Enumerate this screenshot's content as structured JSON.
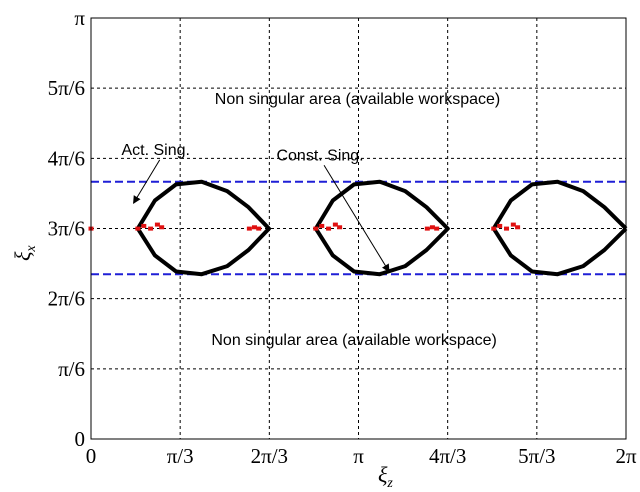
{
  "chart_data": {
    "type": "line",
    "xlabel": "ξ",
    "xlabel_sub": "z",
    "ylabel": "ξ",
    "ylabel_sub": "x",
    "xlim": [
      0,
      6.2832
    ],
    "ylim": [
      0,
      3.1416
    ],
    "x_ticks": [
      {
        "value": 0,
        "label": "0"
      },
      {
        "value": 1.0472,
        "label": "π/3"
      },
      {
        "value": 2.0944,
        "label": "2π/3"
      },
      {
        "value": 3.1416,
        "label": "π"
      },
      {
        "value": 4.1888,
        "label": "4π/3"
      },
      {
        "value": 5.236,
        "label": "5π/3"
      },
      {
        "value": 6.2832,
        "label": "2π"
      }
    ],
    "y_ticks": [
      {
        "value": 0,
        "label": "0"
      },
      {
        "value": 0.5236,
        "label": "π/6"
      },
      {
        "value": 1.0472,
        "label": "2π/6"
      },
      {
        "value": 1.5708,
        "label": "3π/6"
      },
      {
        "value": 2.0944,
        "label": "4π/6"
      },
      {
        "value": 2.618,
        "label": "5π/6"
      },
      {
        "value": 3.1416,
        "label": "π"
      }
    ],
    "grid": true,
    "series": [
      {
        "role": "constraint-singularity",
        "color": "#1f1fd6",
        "style": "dashed",
        "x": [
          0,
          6.2832
        ],
        "y": [
          1.92,
          1.92
        ]
      },
      {
        "role": "constraint-singularity",
        "color": "#1f1fd6",
        "style": "dashed",
        "x": [
          0,
          6.2832
        ],
        "y": [
          1.23,
          1.23
        ]
      },
      {
        "role": "actuation-singularity",
        "color": "#000000",
        "style": "solid",
        "x": [
          0.55,
          0.75,
          1.0,
          1.3,
          1.6,
          1.85,
          2.09,
          1.85,
          1.6,
          1.3,
          1.0,
          0.75,
          0.55
        ],
        "y": [
          1.57,
          1.78,
          1.9,
          1.92,
          1.85,
          1.73,
          1.57,
          1.41,
          1.29,
          1.23,
          1.25,
          1.37,
          1.57
        ]
      },
      {
        "role": "actuation-singularity",
        "color": "#000000",
        "style": "solid",
        "x": [
          2.64,
          2.84,
          3.09,
          3.39,
          3.69,
          3.94,
          4.19,
          3.94,
          3.69,
          3.39,
          3.09,
          2.84,
          2.64
        ],
        "y": [
          1.57,
          1.78,
          1.9,
          1.92,
          1.85,
          1.73,
          1.57,
          1.41,
          1.29,
          1.23,
          1.25,
          1.37,
          1.57
        ]
      },
      {
        "role": "actuation-singularity",
        "color": "#000000",
        "style": "solid",
        "x": [
          4.73,
          4.93,
          5.18,
          5.48,
          5.78,
          6.03,
          6.2832
        ],
        "y": [
          1.57,
          1.78,
          1.9,
          1.92,
          1.85,
          1.73,
          1.57
        ]
      },
      {
        "role": "actuation-singularity",
        "color": "#000000",
        "style": "solid",
        "x": [
          6.2832,
          6.03,
          5.78,
          5.48,
          5.18,
          4.93,
          4.73
        ],
        "y": [
          1.57,
          1.41,
          1.29,
          1.23,
          1.25,
          1.37,
          1.57
        ]
      },
      {
        "role": "red-marks",
        "color": "#e01010",
        "style": "points",
        "x": [
          0.0,
          0.55,
          0.62,
          0.7,
          0.78,
          0.83,
          1.86,
          1.92,
          1.97,
          2.64,
          2.71,
          2.79,
          2.87,
          2.92,
          3.95,
          4.01,
          4.06,
          4.73,
          4.8,
          4.88,
          4.96,
          5.01
        ],
        "y": [
          1.57,
          1.57,
          1.59,
          1.57,
          1.6,
          1.58,
          1.57,
          1.58,
          1.57,
          1.57,
          1.59,
          1.57,
          1.6,
          1.58,
          1.57,
          1.58,
          1.57,
          1.57,
          1.59,
          1.57,
          1.6,
          1.58
        ]
      }
    ],
    "annotations": [
      {
        "text": "Non singular area (available workspace)",
        "x": 3.13,
        "y": 2.5
      },
      {
        "text": "Non singular area (available workspace)",
        "x": 3.09,
        "y": 0.7
      },
      {
        "text": "Act. Sing.",
        "x": 0.76,
        "y": 2.12,
        "arrow_to": [
          0.5,
          1.76
        ]
      },
      {
        "text": "Const. Sing.",
        "x": 2.69,
        "y": 2.08,
        "arrow_to": [
          3.5,
          1.25
        ]
      }
    ]
  }
}
